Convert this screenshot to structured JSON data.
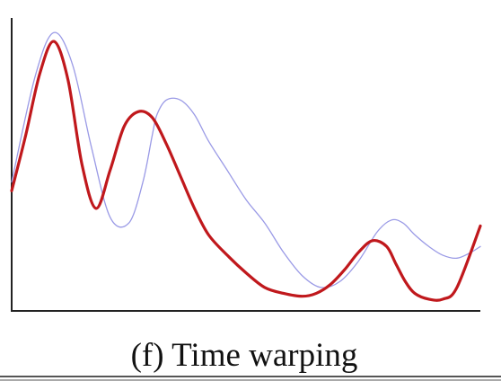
{
  "caption": "(f) Time warping",
  "colors": {
    "original": "#9a9ae6",
    "warped": "#c0181c",
    "axis": "#222222",
    "rule": "#555555"
  },
  "chart_data": {
    "type": "line",
    "title": "",
    "xlabel": "",
    "ylabel": "",
    "xlim": [
      0,
      1
    ],
    "ylim": [
      0,
      1
    ],
    "grid": false,
    "legend": "none",
    "series": [
      {
        "x": [
          0.0,
          0.05,
          0.09,
          0.13,
          0.17,
          0.21,
          0.25,
          0.28,
          0.3,
          0.31,
          0.33,
          0.36,
          0.39,
          0.42,
          0.46,
          0.5,
          0.54,
          0.58,
          0.62,
          0.66,
          0.7,
          0.74,
          0.78,
          0.81,
          0.835,
          0.86,
          0.89,
          0.92,
          0.95,
          0.98,
          1.0
        ],
        "y": [
          0.44,
          0.8,
          0.95,
          0.84,
          0.56,
          0.32,
          0.3,
          0.44,
          0.6,
          0.67,
          0.72,
          0.72,
          0.67,
          0.58,
          0.48,
          0.38,
          0.3,
          0.2,
          0.12,
          0.08,
          0.1,
          0.17,
          0.27,
          0.31,
          0.3,
          0.26,
          0.22,
          0.19,
          0.18,
          0.2,
          0.22
        ]
      },
      {
        "x": [
          0.0,
          0.03,
          0.06,
          0.09,
          0.12,
          0.15,
          0.18,
          0.21,
          0.24,
          0.27,
          0.3,
          0.33,
          0.36,
          0.39,
          0.42,
          0.46,
          0.5,
          0.54,
          0.58,
          0.62,
          0.65,
          0.68,
          0.71,
          0.74,
          0.77,
          0.8,
          0.82,
          0.84,
          0.86,
          0.89,
          0.92,
          0.95,
          1.0
        ],
        "y": [
          0.41,
          0.6,
          0.81,
          0.92,
          0.79,
          0.5,
          0.35,
          0.48,
          0.63,
          0.68,
          0.66,
          0.57,
          0.46,
          0.35,
          0.26,
          0.19,
          0.13,
          0.08,
          0.06,
          0.05,
          0.06,
          0.09,
          0.14,
          0.2,
          0.24,
          0.22,
          0.16,
          0.1,
          0.06,
          0.04,
          0.04,
          0.08,
          0.29
        ]
      }
    ]
  }
}
